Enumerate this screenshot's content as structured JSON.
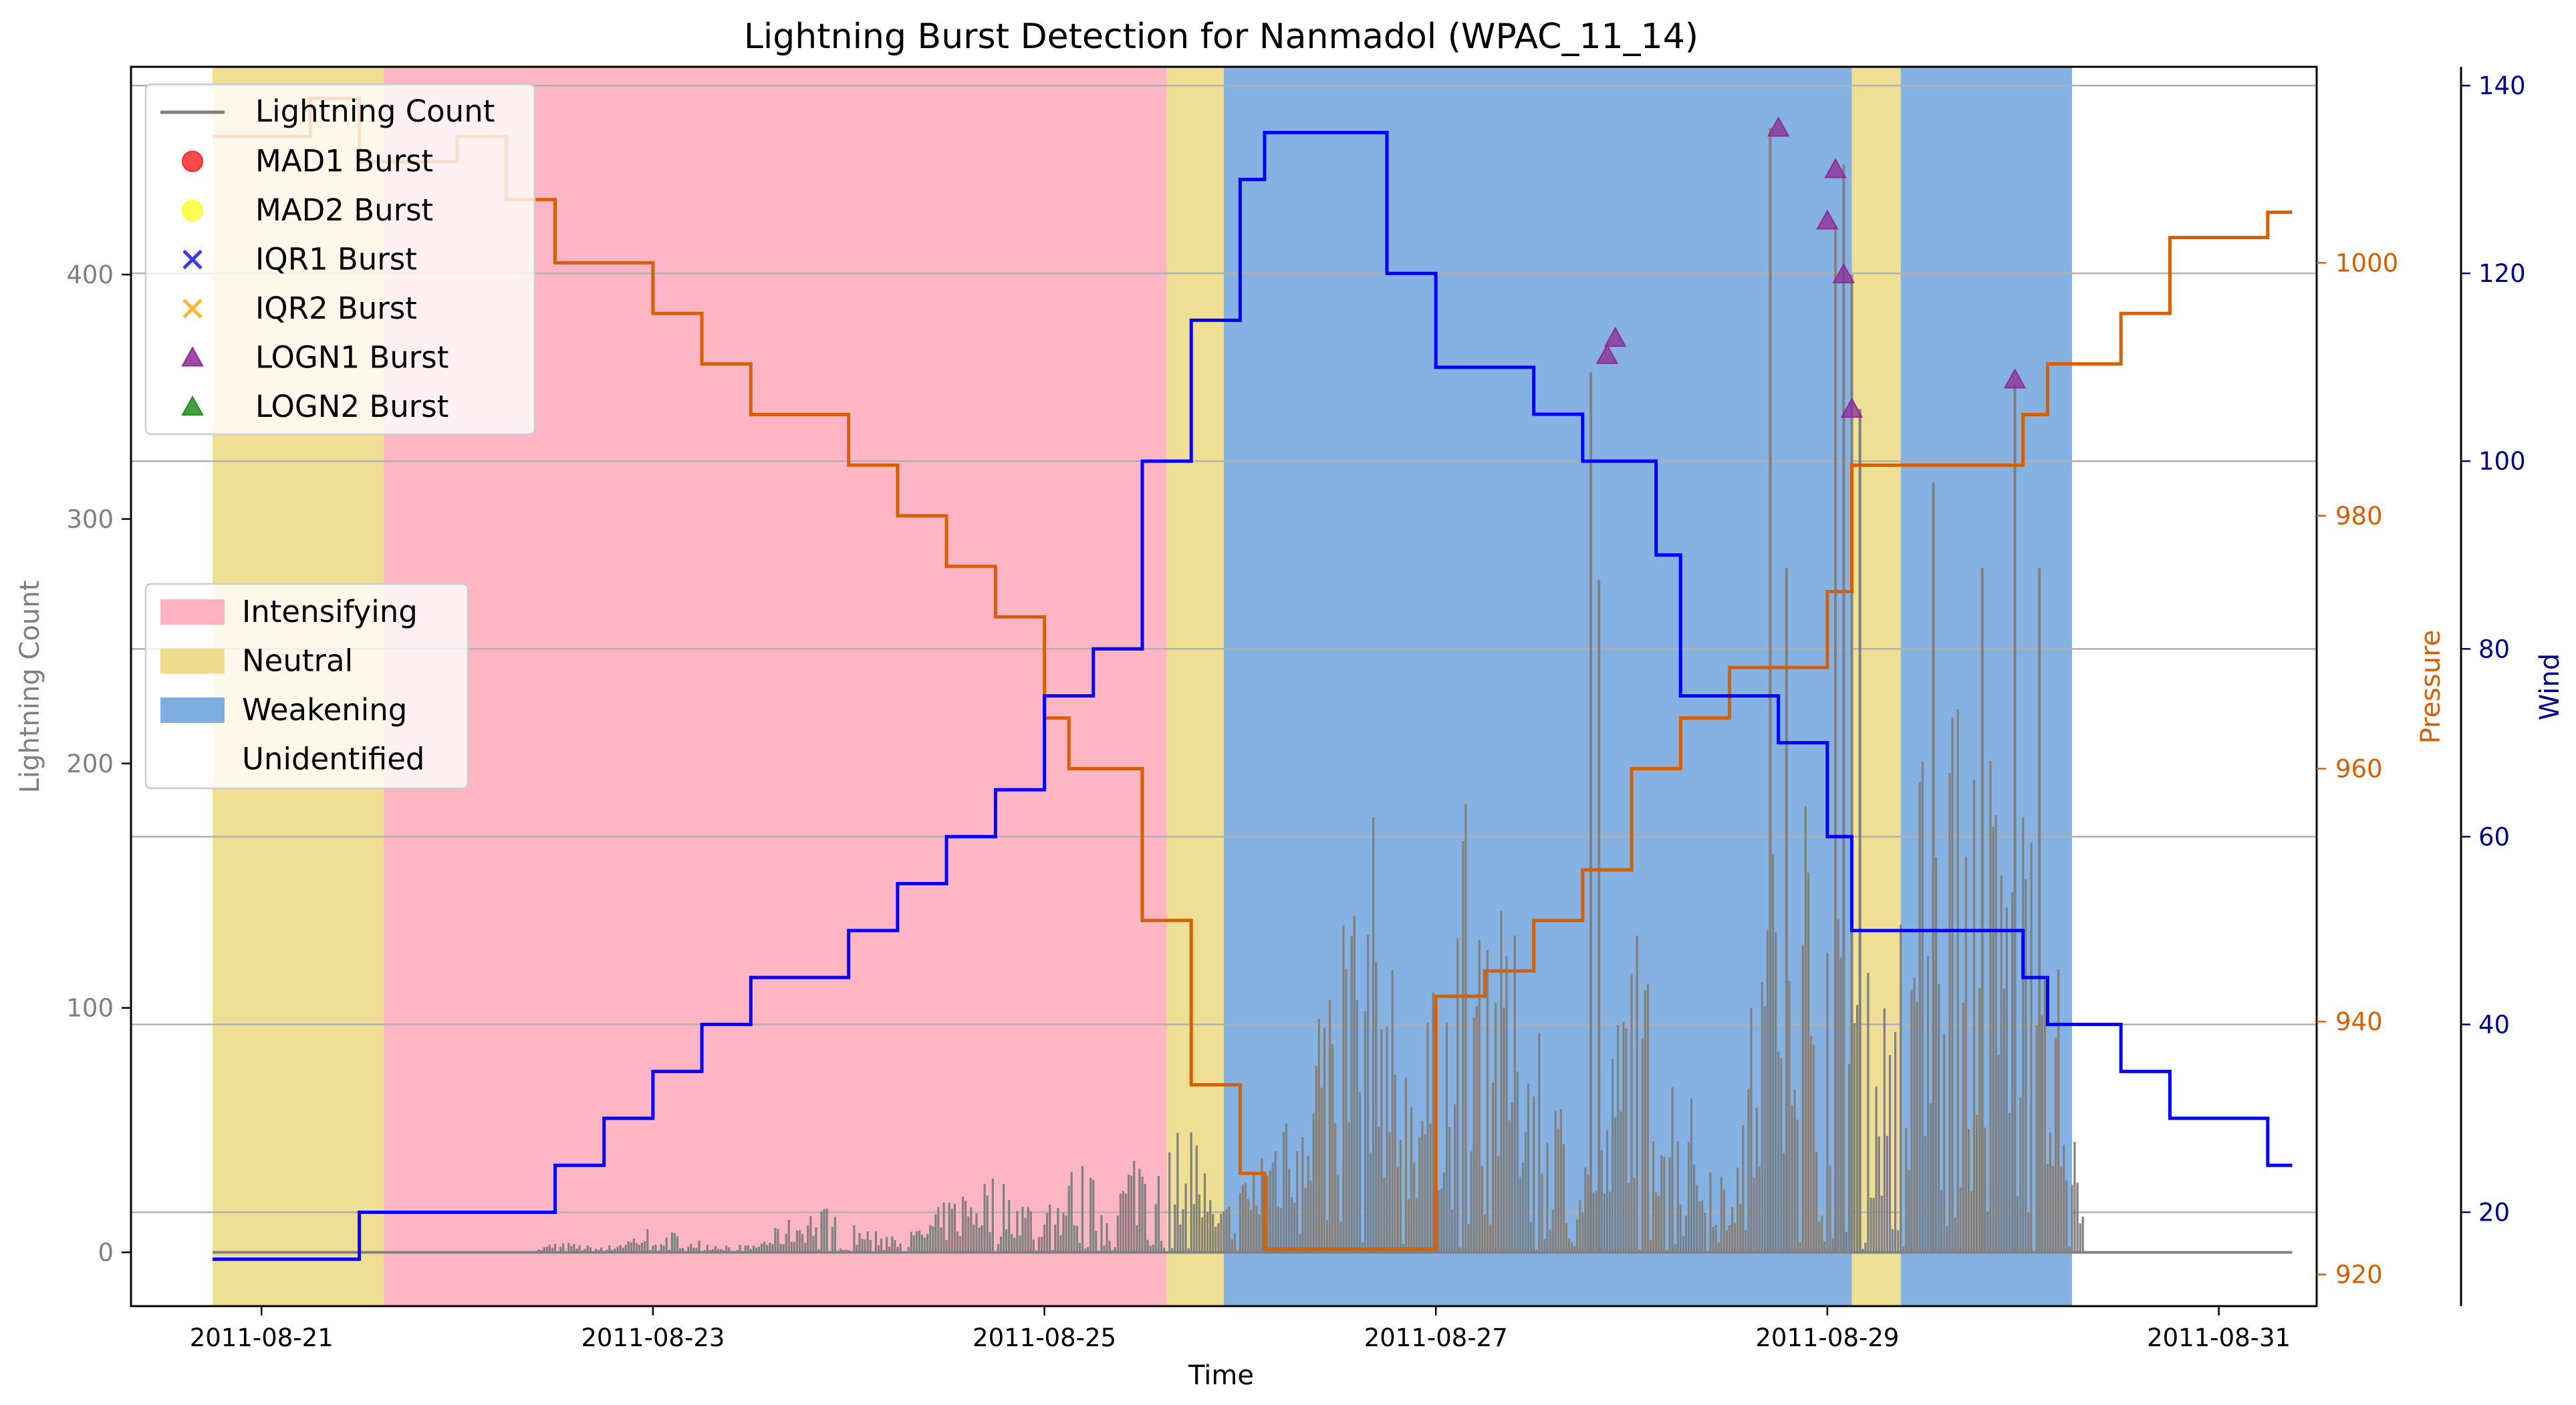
{
  "chart_data": {
    "type": "line",
    "title": "Lightning Burst Detection for Nanmadol (WPAC_11_14)",
    "xlabel": "Time",
    "ylabel_left": "Lightning Count",
    "ylabel_pressure": "Pressure",
    "ylabel_wind": "Wind",
    "x_ticks": [
      "2011-08-21",
      "2011-08-23",
      "2011-08-25",
      "2011-08-27",
      "2011-08-29",
      "2011-08-31"
    ],
    "xlim": [
      "2011-08-20 08:00",
      "2011-08-31 12:00"
    ],
    "axes": {
      "lightning": {
        "ylim": [
          -22,
          485
        ],
        "ticks": [
          0,
          100,
          200,
          300,
          400
        ]
      },
      "pressure": {
        "ylim": [
          917.5,
          1015.5
        ],
        "ticks": [
          920,
          940,
          960,
          980,
          1000
        ]
      },
      "wind": {
        "ylim": [
          10,
          142
        ],
        "ticks": [
          20,
          40,
          60,
          80,
          100,
          120,
          140
        ]
      }
    },
    "legend_series": {
      "line_label": "Lightning Count",
      "markers": [
        {
          "label": "MAD1 Burst",
          "color": "#ff2a2a",
          "shape": "circle"
        },
        {
          "label": "MAD2 Burst",
          "color": "#ffff33",
          "shape": "circle"
        },
        {
          "label": "IQR1 Burst",
          "color": "#3a3ae6",
          "shape": "x"
        },
        {
          "label": "IQR2 Burst",
          "color": "#ffb833",
          "shape": "x"
        },
        {
          "label": "LOGN1 Burst",
          "color": "#8e2a96",
          "shape": "triangle"
        },
        {
          "label": "LOGN2 Burst",
          "color": "#1f8f1f",
          "shape": "triangle"
        }
      ]
    },
    "legend_phases": [
      {
        "label": "Intensifying",
        "color": "#ffb2c1"
      },
      {
        "label": "Neutral",
        "color": "#eedd8e"
      },
      {
        "label": "Weakening",
        "color": "#7eaee0"
      },
      {
        "label": "Unidentified",
        "color": "#ffffff"
      }
    ],
    "phases": [
      {
        "start": "2011-08-20 18:00",
        "end": "2011-08-21 15:00",
        "phase": "Neutral"
      },
      {
        "start": "2011-08-21 15:00",
        "end": "2011-08-25 15:00",
        "phase": "Intensifying"
      },
      {
        "start": "2011-08-25 15:00",
        "end": "2011-08-25 22:00",
        "phase": "Neutral"
      },
      {
        "start": "2011-08-25 22:00",
        "end": "2011-08-29 03:00",
        "phase": "Weakening"
      },
      {
        "start": "2011-08-29 03:00",
        "end": "2011-08-29 09:00",
        "phase": "Neutral"
      },
      {
        "start": "2011-08-29 09:00",
        "end": "2011-08-30 06:00",
        "phase": "Weakening"
      }
    ],
    "series": [
      {
        "name": "Pressure",
        "axis": "pressure",
        "color": "#d65f00",
        "step": true,
        "points": [
          [
            "2011-08-20 18:00",
            1010
          ],
          [
            "2011-08-21 06:00",
            1010
          ],
          [
            "2011-08-21 06:00",
            1013
          ],
          [
            "2011-08-21 12:00",
            1013
          ],
          [
            "2011-08-21 12:00",
            1008
          ],
          [
            "2011-08-22 00:00",
            1008
          ],
          [
            "2011-08-22 00:00",
            1010
          ],
          [
            "2011-08-22 06:00",
            1010
          ],
          [
            "2011-08-22 06:00",
            1005
          ],
          [
            "2011-08-22 12:00",
            1005
          ],
          [
            "2011-08-22 12:00",
            1000
          ],
          [
            "2011-08-23 00:00",
            1000
          ],
          [
            "2011-08-23 00:00",
            996
          ],
          [
            "2011-08-23 06:00",
            996
          ],
          [
            "2011-08-23 06:00",
            992
          ],
          [
            "2011-08-23 12:00",
            992
          ],
          [
            "2011-08-23 12:00",
            988
          ],
          [
            "2011-08-24 00:00",
            988
          ],
          [
            "2011-08-24 00:00",
            984
          ],
          [
            "2011-08-24 06:00",
            984
          ],
          [
            "2011-08-24 06:00",
            980
          ],
          [
            "2011-08-24 12:00",
            980
          ],
          [
            "2011-08-24 12:00",
            976
          ],
          [
            "2011-08-24 18:00",
            976
          ],
          [
            "2011-08-24 18:00",
            972
          ],
          [
            "2011-08-25 00:00",
            972
          ],
          [
            "2011-08-25 00:00",
            964
          ],
          [
            "2011-08-25 03:00",
            964
          ],
          [
            "2011-08-25 03:00",
            960
          ],
          [
            "2011-08-25 12:00",
            960
          ],
          [
            "2011-08-25 12:00",
            948
          ],
          [
            "2011-08-25 18:00",
            948
          ],
          [
            "2011-08-25 18:00",
            935
          ],
          [
            "2011-08-26 00:00",
            935
          ],
          [
            "2011-08-26 00:00",
            928
          ],
          [
            "2011-08-26 03:00",
            928
          ],
          [
            "2011-08-26 03:00",
            922
          ],
          [
            "2011-08-27 00:00",
            922
          ],
          [
            "2011-08-27 00:00",
            942
          ],
          [
            "2011-08-27 06:00",
            942
          ],
          [
            "2011-08-27 06:00",
            944
          ],
          [
            "2011-08-27 12:00",
            944
          ],
          [
            "2011-08-27 12:00",
            948
          ],
          [
            "2011-08-27 18:00",
            948
          ],
          [
            "2011-08-27 18:00",
            952
          ],
          [
            "2011-08-28 00:00",
            952
          ],
          [
            "2011-08-28 00:00",
            960
          ],
          [
            "2011-08-28 06:00",
            960
          ],
          [
            "2011-08-28 06:00",
            964
          ],
          [
            "2011-08-28 12:00",
            964
          ],
          [
            "2011-08-28 12:00",
            968
          ],
          [
            "2011-08-29 00:00",
            968
          ],
          [
            "2011-08-29 00:00",
            974
          ],
          [
            "2011-08-29 03:00",
            974
          ],
          [
            "2011-08-29 03:00",
            984
          ],
          [
            "2011-08-30 00:00",
            984
          ],
          [
            "2011-08-30 00:00",
            988
          ],
          [
            "2011-08-30 03:00",
            988
          ],
          [
            "2011-08-30 03:00",
            992
          ],
          [
            "2011-08-30 12:00",
            992
          ],
          [
            "2011-08-30 12:00",
            996
          ],
          [
            "2011-08-30 18:00",
            996
          ],
          [
            "2011-08-30 18:00",
            1002
          ],
          [
            "2011-08-31 06:00",
            1002
          ],
          [
            "2011-08-31 06:00",
            1004
          ],
          [
            "2011-08-31 09:00",
            1004
          ]
        ]
      },
      {
        "name": "Wind",
        "axis": "wind",
        "color": "#0000ff",
        "step": true,
        "points": [
          [
            "2011-08-20 18:00",
            15
          ],
          [
            "2011-08-21 12:00",
            15
          ],
          [
            "2011-08-21 12:00",
            20
          ],
          [
            "2011-08-22 12:00",
            20
          ],
          [
            "2011-08-22 12:00",
            25
          ],
          [
            "2011-08-22 18:00",
            25
          ],
          [
            "2011-08-22 18:00",
            30
          ],
          [
            "2011-08-23 00:00",
            30
          ],
          [
            "2011-08-23 00:00",
            35
          ],
          [
            "2011-08-23 06:00",
            35
          ],
          [
            "2011-08-23 06:00",
            40
          ],
          [
            "2011-08-23 12:00",
            40
          ],
          [
            "2011-08-23 12:00",
            45
          ],
          [
            "2011-08-24 00:00",
            45
          ],
          [
            "2011-08-24 00:00",
            50
          ],
          [
            "2011-08-24 06:00",
            50
          ],
          [
            "2011-08-24 06:00",
            55
          ],
          [
            "2011-08-24 12:00",
            55
          ],
          [
            "2011-08-24 12:00",
            60
          ],
          [
            "2011-08-24 18:00",
            60
          ],
          [
            "2011-08-24 18:00",
            65
          ],
          [
            "2011-08-25 00:00",
            65
          ],
          [
            "2011-08-25 00:00",
            75
          ],
          [
            "2011-08-25 06:00",
            75
          ],
          [
            "2011-08-25 06:00",
            80
          ],
          [
            "2011-08-25 12:00",
            80
          ],
          [
            "2011-08-25 12:00",
            100
          ],
          [
            "2011-08-25 18:00",
            100
          ],
          [
            "2011-08-25 18:00",
            115
          ],
          [
            "2011-08-26 00:00",
            115
          ],
          [
            "2011-08-26 00:00",
            130
          ],
          [
            "2011-08-26 03:00",
            130
          ],
          [
            "2011-08-26 03:00",
            135
          ],
          [
            "2011-08-26 18:00",
            135
          ],
          [
            "2011-08-26 18:00",
            120
          ],
          [
            "2011-08-27 00:00",
            120
          ],
          [
            "2011-08-27 00:00",
            110
          ],
          [
            "2011-08-27 12:00",
            110
          ],
          [
            "2011-08-27 12:00",
            105
          ],
          [
            "2011-08-27 18:00",
            105
          ],
          [
            "2011-08-27 18:00",
            100
          ],
          [
            "2011-08-28 03:00",
            100
          ],
          [
            "2011-08-28 03:00",
            90
          ],
          [
            "2011-08-28 06:00",
            90
          ],
          [
            "2011-08-28 06:00",
            75
          ],
          [
            "2011-08-28 18:00",
            75
          ],
          [
            "2011-08-28 18:00",
            70
          ],
          [
            "2011-08-29 00:00",
            70
          ],
          [
            "2011-08-29 00:00",
            60
          ],
          [
            "2011-08-29 03:00",
            60
          ],
          [
            "2011-08-29 03:00",
            50
          ],
          [
            "2011-08-30 00:00",
            50
          ],
          [
            "2011-08-30 00:00",
            45
          ],
          [
            "2011-08-30 03:00",
            45
          ],
          [
            "2011-08-30 03:00",
            40
          ],
          [
            "2011-08-30 12:00",
            40
          ],
          [
            "2011-08-30 12:00",
            35
          ],
          [
            "2011-08-30 18:00",
            35
          ],
          [
            "2011-08-30 18:00",
            30
          ],
          [
            "2011-08-31 06:00",
            30
          ],
          [
            "2011-08-31 06:00",
            25
          ],
          [
            "2011-08-31 09:00",
            25
          ]
        ]
      }
    ],
    "lightning_envelope": [
      [
        "2011-08-20 18:00",
        0
      ],
      [
        "2011-08-22 09:00",
        0
      ],
      [
        "2011-08-22 12:00",
        5
      ],
      [
        "2011-08-22 18:00",
        2
      ],
      [
        "2011-08-23 00:00",
        12
      ],
      [
        "2011-08-23 06:00",
        5
      ],
      [
        "2011-08-23 12:00",
        3
      ],
      [
        "2011-08-23 20:00",
        22
      ],
      [
        "2011-08-24 00:00",
        12
      ],
      [
        "2011-08-24 08:00",
        9
      ],
      [
        "2011-08-24 12:00",
        22
      ],
      [
        "2011-08-24 16:00",
        35
      ],
      [
        "2011-08-24 20:00",
        30
      ],
      [
        "2011-08-25 00:00",
        18
      ],
      [
        "2011-08-25 04:00",
        40
      ],
      [
        "2011-08-25 08:00",
        22
      ],
      [
        "2011-08-25 12:00",
        55
      ],
      [
        "2011-08-25 15:00",
        45
      ],
      [
        "2011-08-25 18:00",
        65
      ],
      [
        "2011-08-25 21:00",
        15
      ],
      [
        "2011-08-26 00:00",
        30
      ],
      [
        "2011-08-26 04:00",
        60
      ],
      [
        "2011-08-26 08:00",
        110
      ],
      [
        "2011-08-26 12:00",
        150
      ],
      [
        "2011-08-26 16:00",
        190
      ],
      [
        "2011-08-26 20:00",
        90
      ],
      [
        "2011-08-27 00:00",
        110
      ],
      [
        "2011-08-27 04:00",
        200
      ],
      [
        "2011-08-27 08:00",
        140
      ],
      [
        "2011-08-27 12:00",
        120
      ],
      [
        "2011-08-27 16:00",
        60
      ],
      [
        "2011-08-27 20:00",
        40
      ],
      [
        "2011-08-28 00:00",
        150
      ],
      [
        "2011-08-28 04:00",
        90
      ],
      [
        "2011-08-28 08:00",
        60
      ],
      [
        "2011-08-28 12:00",
        40
      ],
      [
        "2011-08-28 16:00",
        140
      ],
      [
        "2011-08-28 20:00",
        230
      ],
      [
        "2011-08-29 00:00",
        180
      ],
      [
        "2011-08-29 03:00",
        150
      ],
      [
        "2011-08-29 06:00",
        100
      ],
      [
        "2011-08-29 10:00",
        160
      ],
      [
        "2011-08-29 14:00",
        280
      ],
      [
        "2011-08-29 18:00",
        230
      ],
      [
        "2011-08-29 22:00",
        200
      ],
      [
        "2011-08-30 02:00",
        210
      ],
      [
        "2011-08-30 06:00",
        60
      ],
      [
        "2011-08-30 08:00",
        0
      ],
      [
        "2011-08-31 09:00",
        0
      ]
    ],
    "lightning_spikes": [
      [
        "2011-08-27 19:00",
        360
      ],
      [
        "2011-08-27 20:00",
        275
      ],
      [
        "2011-08-28 17:00",
        460
      ],
      [
        "2011-08-28 19:00",
        280
      ],
      [
        "2011-08-29 01:00",
        420
      ],
      [
        "2011-08-29 02:00",
        445
      ],
      [
        "2011-08-29 03:00",
        400
      ],
      [
        "2011-08-29 04:00",
        345
      ],
      [
        "2011-08-29 13:00",
        315
      ],
      [
        "2011-08-29 19:00",
        280
      ],
      [
        "2011-08-29 23:00",
        355
      ],
      [
        "2011-08-30 02:00",
        280
      ]
    ],
    "logn1_bursts": [
      [
        "2011-08-27 21:00",
        367
      ],
      [
        "2011-08-27 22:00",
        374
      ],
      [
        "2011-08-28 18:00",
        460
      ],
      [
        "2011-08-29 00:00",
        422
      ],
      [
        "2011-08-29 01:00",
        443
      ],
      [
        "2011-08-29 02:00",
        400
      ],
      [
        "2011-08-29 03:00",
        345
      ],
      [
        "2011-08-29 23:00",
        357
      ]
    ]
  }
}
